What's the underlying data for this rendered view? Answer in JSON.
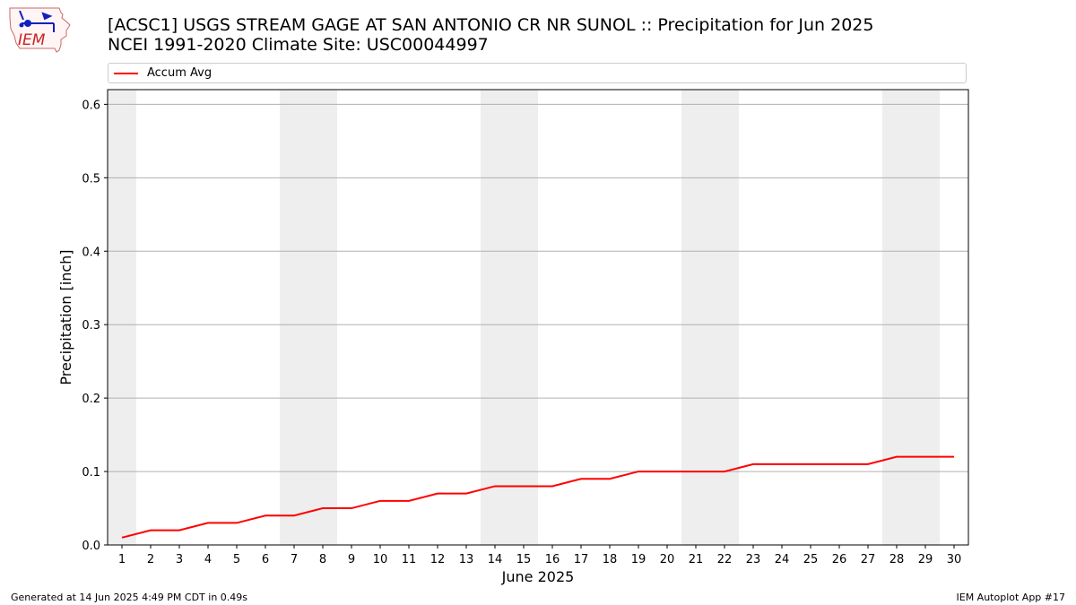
{
  "header": {
    "title_line1": "[ACSC1] USGS STREAM GAGE  AT SAN ANTONIO CR NR SUNOL :: Precipitation for Jun 2025",
    "title_line2": "NCEI 1991-2020 Climate Site: USC00044997"
  },
  "logo": {
    "text": "IEM",
    "icon": "iem-iowa-logo"
  },
  "footer": {
    "generated": "Generated at 14 Jun 2025 4:49 PM CDT in 0.49s",
    "app": "IEM Autoplot App #17"
  },
  "colors": {
    "series": "#ff0000",
    "weekend_band": "#eeeeee",
    "grid": "#b0b0b0"
  },
  "chart_data": {
    "type": "line",
    "title": "[ACSC1] USGS STREAM GAGE  AT SAN ANTONIO CR NR SUNOL :: Precipitation for Jun 2025",
    "subtitle": "NCEI 1991-2020 Climate Site: USC00044997",
    "xlabel": "June 2025",
    "ylabel": "Precipitation [inch]",
    "x": [
      1,
      2,
      3,
      4,
      5,
      6,
      7,
      8,
      9,
      10,
      11,
      12,
      13,
      14,
      15,
      16,
      17,
      18,
      19,
      20,
      21,
      22,
      23,
      24,
      25,
      26,
      27,
      28,
      29,
      30
    ],
    "xlim": [
      0.5,
      30.5
    ],
    "ylim": [
      0,
      0.62
    ],
    "yticks": [
      0.0,
      0.1,
      0.2,
      0.3,
      0.4,
      0.5,
      0.6
    ],
    "ytick_labels": [
      "0.0",
      "0.1",
      "0.2",
      "0.3",
      "0.4",
      "0.5",
      "0.6"
    ],
    "grid": "horizontal",
    "legend_position": "top",
    "shaded_days": [
      1,
      7,
      8,
      14,
      15,
      21,
      22,
      28,
      29
    ],
    "series": [
      {
        "name": "Accum Avg",
        "color": "#ff0000",
        "values": [
          0.01,
          0.02,
          0.02,
          0.03,
          0.03,
          0.04,
          0.04,
          0.05,
          0.05,
          0.06,
          0.06,
          0.07,
          0.07,
          0.08,
          0.08,
          0.08,
          0.09,
          0.09,
          0.1,
          0.1,
          0.1,
          0.1,
          0.11,
          0.11,
          0.11,
          0.11,
          0.11,
          0.12,
          0.12,
          0.12
        ]
      }
    ]
  }
}
